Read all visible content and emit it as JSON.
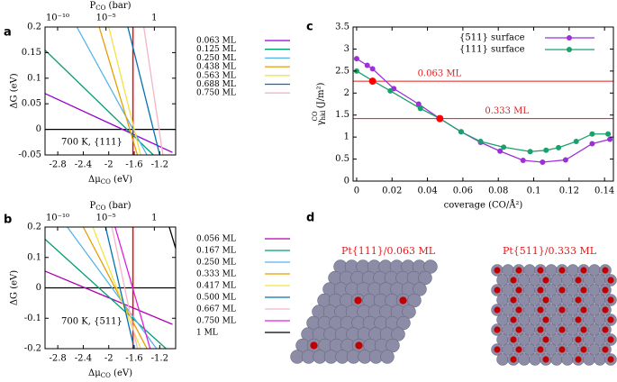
{
  "chart_data": [
    {
      "type": "line",
      "panel": "a",
      "xlim": [
        -3.0,
        -0.95
      ],
      "xticks": [
        -2.8,
        -2.4,
        -2,
        -1.6,
        -1.2
      ],
      "ylim": [
        -0.05,
        0.2
      ],
      "yticks": [
        -0.05,
        0,
        0.05,
        0.1,
        0.15,
        0.2
      ],
      "x2lim": [
        -11.3,
        2.2
      ],
      "x2ticks": [
        {
          "value": -10,
          "label": "10⁻¹⁰"
        },
        {
          "value": -5,
          "label": "10⁻⁵"
        },
        {
          "value": 0,
          "label": "1"
        }
      ],
      "x2label": {
        "main": "P",
        "sub": "CO",
        "tail": " (bar)"
      },
      "xlabel": {
        "main": "Δμ",
        "sub": "CO",
        "tail": " (eV)"
      },
      "ylabel": "ΔG (eV)",
      "annotation": "700 K, {111}",
      "zero_line": true,
      "vline": -1.62,
      "vline_color": "#ff0000",
      "series": [
        {
          "name": "0.063 ML",
          "color": "#9400d3",
          "x": [
            -3.0,
            -1.0
          ],
          "values": [
            0.07,
            -0.045
          ]
        },
        {
          "name": "0.125 ML",
          "color": "#009e73",
          "x": [
            -3.0,
            -1.3
          ],
          "values": [
            0.155,
            -0.05
          ]
        },
        {
          "name": "0.250 ML",
          "color": "#56b4e9",
          "x": [
            -2.5,
            -1.4
          ],
          "values": [
            0.2,
            -0.05
          ]
        },
        {
          "name": "0.438 ML",
          "color": "#e69f00",
          "x": [
            -2.15,
            -1.55
          ],
          "values": [
            0.2,
            -0.05
          ]
        },
        {
          "name": "0.563 ML",
          "color": "#f0e442",
          "x": [
            -2.0,
            -1.5
          ],
          "values": [
            0.2,
            -0.05
          ]
        },
        {
          "name": "0.688 ML",
          "color": "#0072b2",
          "x": [
            -1.7,
            -1.2
          ],
          "values": [
            0.2,
            -0.05
          ]
        },
        {
          "name": "0.750 ML",
          "color": "#f4b6c2",
          "x": [
            -1.45,
            -1.15
          ],
          "values": [
            0.2,
            -0.05
          ]
        }
      ]
    },
    {
      "type": "line",
      "panel": "b",
      "xlim": [
        -3.0,
        -0.95
      ],
      "xticks": [
        -2.8,
        -2.4,
        -2,
        -1.6,
        -1.2
      ],
      "ylim": [
        -0.2,
        0.2
      ],
      "yticks": [
        -0.2,
        -0.1,
        0,
        0.1,
        0.2
      ],
      "x2lim": [
        -11.3,
        2.2
      ],
      "x2ticks": [
        {
          "value": -10,
          "label": "10⁻¹⁰"
        },
        {
          "value": -5,
          "label": "10⁻⁵"
        },
        {
          "value": 0,
          "label": "1"
        }
      ],
      "x2label": {
        "main": "P",
        "sub": "CO",
        "tail": " (bar)"
      },
      "xlabel": {
        "main": "Δμ",
        "sub": "CO",
        "tail": " (eV)"
      },
      "ylabel": "ΔG (eV)",
      "annotation": "700 K, {511}",
      "zero_line": true,
      "vline": -1.62,
      "vline_color": "#ff0000",
      "series": [
        {
          "name": "0.056 ML",
          "color": "#b000b0",
          "x": [
            -3.0,
            -1.0
          ],
          "values": [
            0.055,
            -0.12
          ]
        },
        {
          "name": "0.167 ML",
          "color": "#009e73",
          "x": [
            -3.0,
            -1.1
          ],
          "values": [
            0.16,
            -0.2
          ]
        },
        {
          "name": "0.250 ML",
          "color": "#56b4e9",
          "x": [
            -2.65,
            -1.25
          ],
          "values": [
            0.2,
            -0.2
          ]
        },
        {
          "name": "0.333 ML",
          "color": "#e69f00",
          "x": [
            -2.4,
            -1.4
          ],
          "values": [
            0.2,
            -0.2
          ]
        },
        {
          "name": "0.417 ML",
          "color": "#f0e442",
          "x": [
            -2.25,
            -1.5
          ],
          "values": [
            0.2,
            -0.2
          ]
        },
        {
          "name": "0.500 ML",
          "color": "#0072b2",
          "x": [
            -2.05,
            -1.6
          ],
          "values": [
            0.2,
            -0.2
          ]
        },
        {
          "name": "0.667 ML",
          "color": "#f4b6c2",
          "x": [
            -1.95,
            -1.55
          ],
          "values": [
            0.2,
            -0.2
          ]
        },
        {
          "name": "0.750 ML",
          "color": "#e020e0",
          "x": [
            -1.9,
            -1.35
          ],
          "values": [
            0.2,
            -0.2
          ]
        },
        {
          "name": "1 ML",
          "color": "#000000",
          "x": [
            -1.05,
            -0.95
          ],
          "values": [
            0.2,
            0.13
          ]
        }
      ]
    },
    {
      "type": "line",
      "panel": "c",
      "markers": true,
      "xlim": [
        -0.002,
        0.145
      ],
      "xticks": [
        0,
        0.02,
        0.04,
        0.06,
        0.08,
        0.1,
        0.12,
        0.14
      ],
      "ylim": [
        0,
        3.5
      ],
      "yticks": [
        0,
        0.5,
        1,
        1.5,
        2,
        2.5,
        3,
        3.5
      ],
      "xlabel": "coverage (CO/Å²)",
      "ylabel": {
        "main": "γ",
        "sub": "hkl",
        "sup": "CO",
        "tail": " (J/m²)"
      },
      "hline_color": "#e41a1c",
      "hlines": [
        {
          "y": 2.27,
          "x": 0.009,
          "label": "0.063 ML"
        },
        {
          "y": 1.42,
          "x": 0.047,
          "label": "0.333 ML"
        }
      ],
      "series": [
        {
          "name": "{511} surface",
          "color": "#9b30d9",
          "x": [
            0,
            0.006,
            0.009,
            0.021,
            0.035,
            0.047,
            0.059,
            0.07,
            0.081,
            0.094,
            0.105,
            0.118,
            0.133,
            0.143
          ],
          "values": [
            2.78,
            2.63,
            2.55,
            2.1,
            1.75,
            1.42,
            1.12,
            0.88,
            0.68,
            0.47,
            0.43,
            0.48,
            0.85,
            0.95
          ]
        },
        {
          "name": "{111} surface",
          "color": "#1aa06a",
          "x": [
            0,
            0.009,
            0.019,
            0.036,
            0.047,
            0.059,
            0.07,
            0.083,
            0.098,
            0.107,
            0.114,
            0.124,
            0.133,
            0.142
          ],
          "values": [
            2.5,
            2.28,
            2.05,
            1.65,
            1.42,
            1.12,
            0.9,
            0.77,
            0.67,
            0.7,
            0.76,
            0.9,
            1.07,
            1.07
          ]
        }
      ]
    }
  ],
  "panel_d": {
    "panel": "d",
    "images": [
      {
        "caption": "Pt{111}/0.063 ML"
      },
      {
        "caption": "Pt{511}/0.333 ML"
      }
    ]
  }
}
